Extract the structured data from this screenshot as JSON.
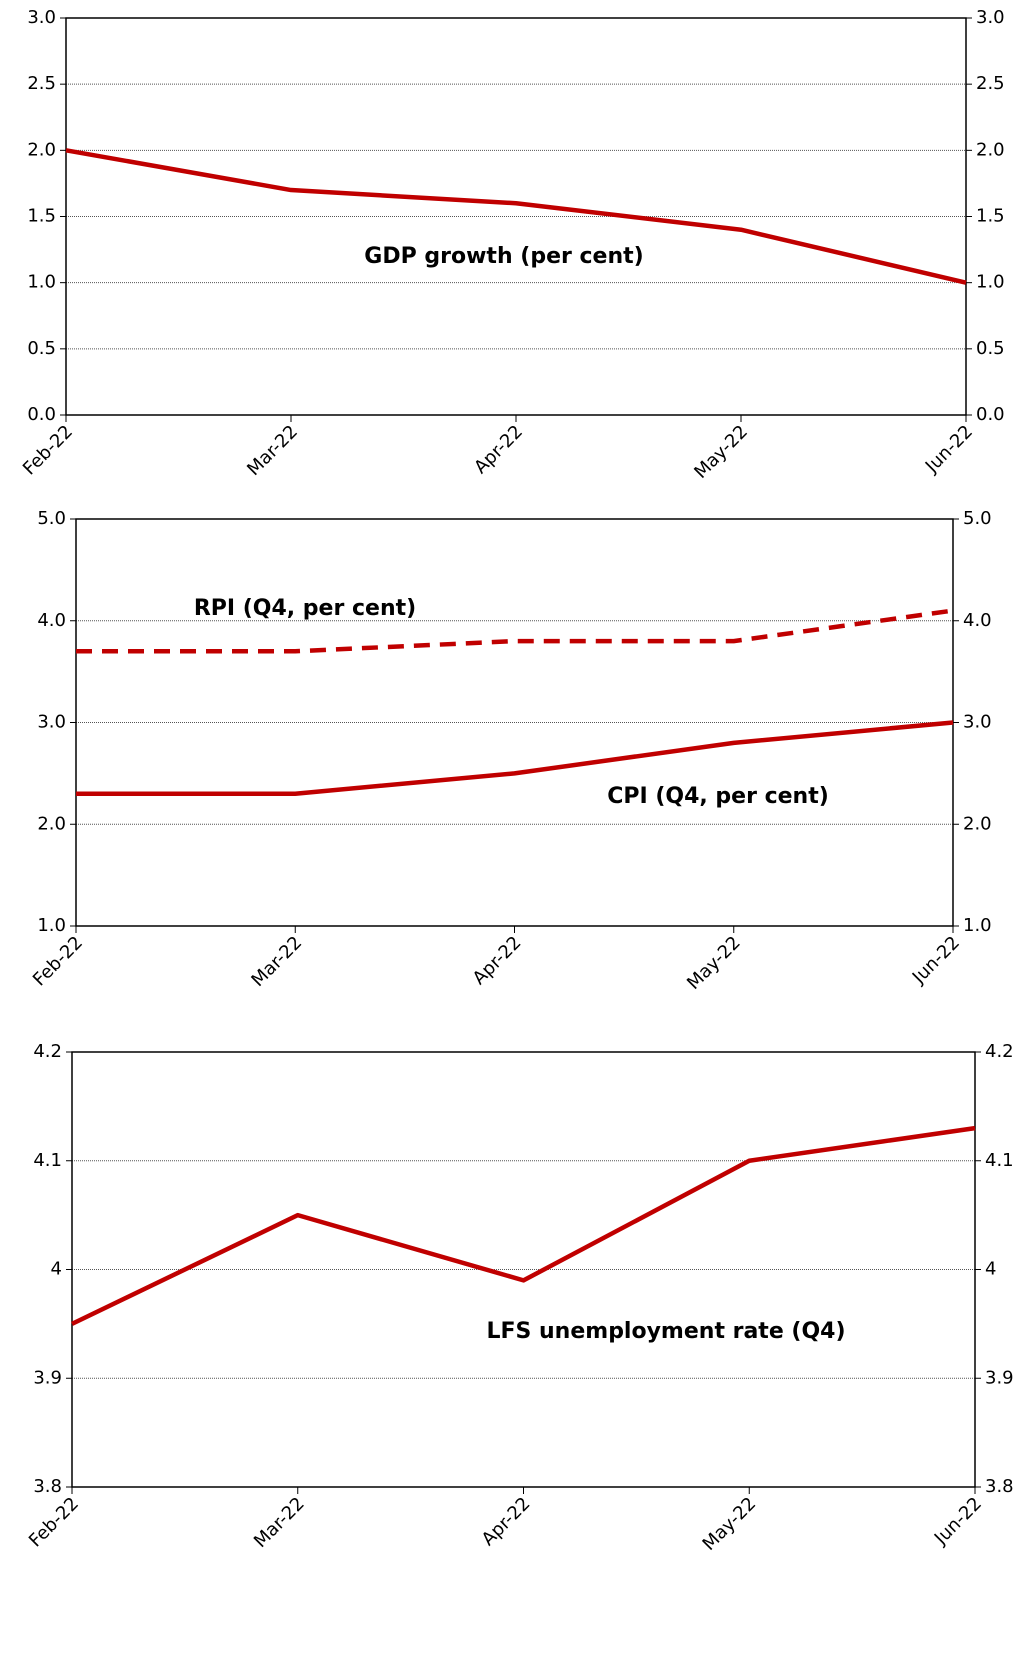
{
  "chart_data": [
    {
      "type": "line",
      "categories": [
        "Feb-22",
        "Mar-22",
        "Apr-22",
        "May-22",
        "Jun-22"
      ],
      "series": [
        {
          "name": "GDP growth (per cent)",
          "color": "#c00000",
          "dash": "solid",
          "values": [
            2.0,
            1.7,
            1.6,
            1.4,
            1.0
          ]
        }
      ],
      "ylim": [
        0,
        3
      ],
      "yticks": [
        {
          "value": 0,
          "label": "0.0"
        },
        {
          "value": 0.5,
          "label": "0.5"
        },
        {
          "value": 1,
          "label": "1.0"
        },
        {
          "value": 1.5,
          "label": "1.5"
        },
        {
          "value": 2,
          "label": "2.0"
        },
        {
          "value": 2.5,
          "label": "2.5"
        },
        {
          "value": 3,
          "label": "3.0"
        }
      ],
      "grid": true
    },
    {
      "type": "line",
      "categories": [
        "Feb-22",
        "Mar-22",
        "Apr-22",
        "May-22",
        "Jun-22"
      ],
      "series": [
        {
          "name": "RPI (Q4, per cent)",
          "color": "#c00000",
          "dash": "dashed",
          "values": [
            3.7,
            3.7,
            3.8,
            3.8,
            4.1
          ]
        },
        {
          "name": "CPI (Q4, per cent)",
          "color": "#c00000",
          "dash": "solid",
          "values": [
            2.3,
            2.3,
            2.5,
            2.8,
            3.0
          ]
        }
      ],
      "ylim": [
        1,
        5
      ],
      "yticks": [
        {
          "value": 1,
          "label": "1.0"
        },
        {
          "value": 2,
          "label": "2.0"
        },
        {
          "value": 3,
          "label": "3.0"
        },
        {
          "value": 4,
          "label": "4.0"
        },
        {
          "value": 5,
          "label": "5.0"
        }
      ],
      "grid": true
    },
    {
      "type": "line",
      "categories": [
        "Feb-22",
        "Mar-22",
        "Apr-22",
        "May-22",
        "Jun-22"
      ],
      "series": [
        {
          "name": "LFS unemployment rate (Q4)",
          "color": "#c00000",
          "dash": "solid",
          "values": [
            3.95,
            4.05,
            3.99,
            4.1,
            4.13
          ]
        }
      ],
      "ylim": [
        3.8,
        4.2
      ],
      "yticks": [
        3.8,
        3.9,
        4.0,
        4.1,
        4.2
      ],
      "grid": true
    }
  ]
}
